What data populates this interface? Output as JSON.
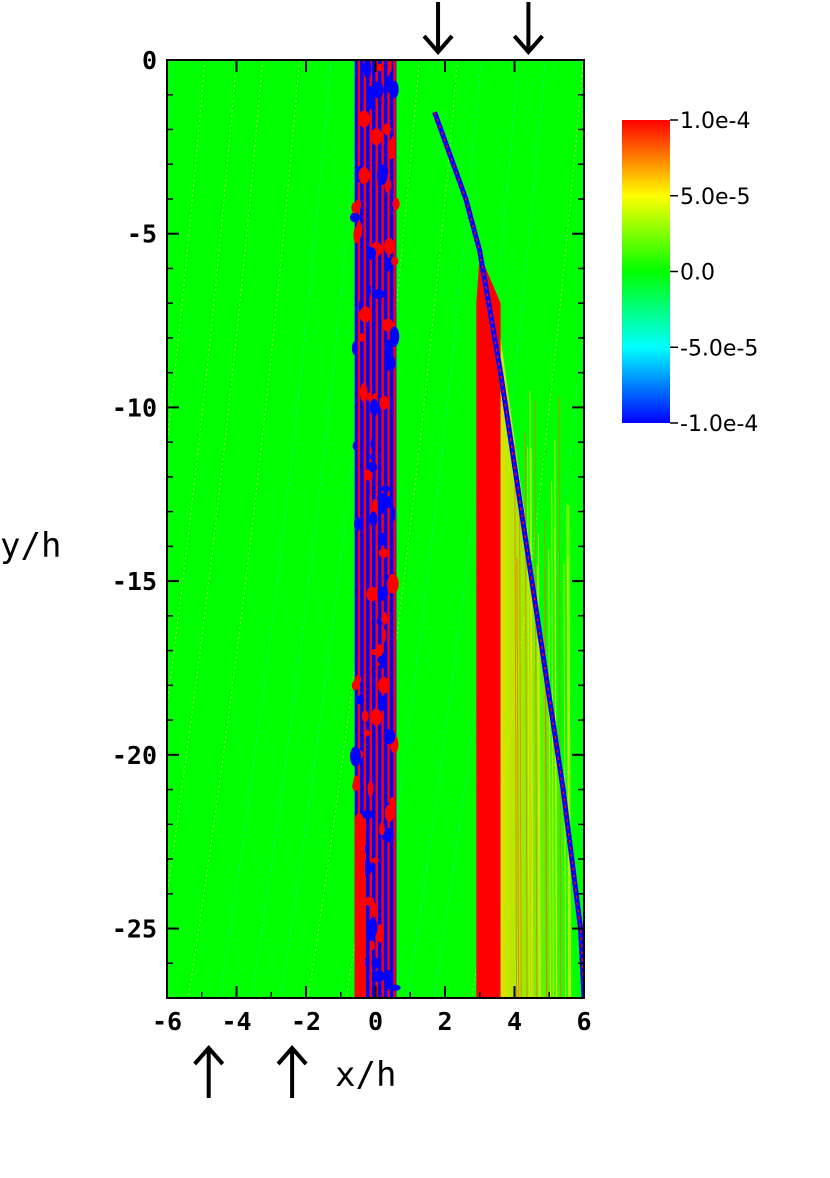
{
  "chart_data": {
    "type": "heatmap",
    "title": "",
    "xlabel": "x/h",
    "ylabel": "y/h",
    "xlim": [
      -6,
      6
    ],
    "ylim": [
      -27,
      0
    ],
    "x_ticks": [
      "-6",
      "-4",
      "-2",
      "0",
      "2",
      "4",
      "6"
    ],
    "x_tick_values": [
      -6,
      -4,
      -2,
      0,
      2,
      4,
      6
    ],
    "y_ticks": [
      "0",
      "-5",
      "-10",
      "-15",
      "-20",
      "-25"
    ],
    "y_tick_values": [
      0,
      -5,
      -10,
      -15,
      -20,
      -25
    ],
    "grid": false,
    "colorbar": {
      "min": -0.0001,
      "max": 0.0001,
      "labels": [
        "1.0e-4",
        "5.0e-5",
        "0.0",
        "-5.0e-5",
        "-1.0e-4"
      ],
      "label_values": [
        0.0001,
        5e-05,
        0,
        -5e-05,
        -0.0001
      ],
      "colors": [
        "#ff0000",
        "#ffff00",
        "#00ff00",
        "#00ffff",
        "#0000ff"
      ],
      "placement": "right"
    },
    "background_value": 0.0,
    "features": [
      {
        "name": "central band",
        "x_range": [
          -0.6,
          0.6
        ],
        "y_range": [
          -27,
          0
        ],
        "values": [
          -0.0001,
          0.0001
        ],
        "pattern": "alternating"
      },
      {
        "name": "right band",
        "x_range": [
          2.9,
          3.6
        ],
        "y_range": [
          -27,
          -6
        ],
        "value": 0.0001
      },
      {
        "name": "curved front",
        "points": [
          [
            1.7,
            -1.5
          ],
          [
            2.6,
            -4.0
          ],
          [
            3.0,
            -5.5
          ],
          [
            3.6,
            -9.0
          ],
          [
            4.2,
            -13.0
          ],
          [
            4.8,
            -17.0
          ],
          [
            5.4,
            -21.0
          ],
          [
            5.9,
            -25.0
          ],
          [
            6.0,
            -27.0
          ]
        ],
        "values": [
          -0.0001,
          0.0001
        ]
      }
    ],
    "top_arrows_x": [
      1.8,
      4.4
    ],
    "bottom_arrows_x": [
      -4.8,
      -2.4
    ]
  }
}
